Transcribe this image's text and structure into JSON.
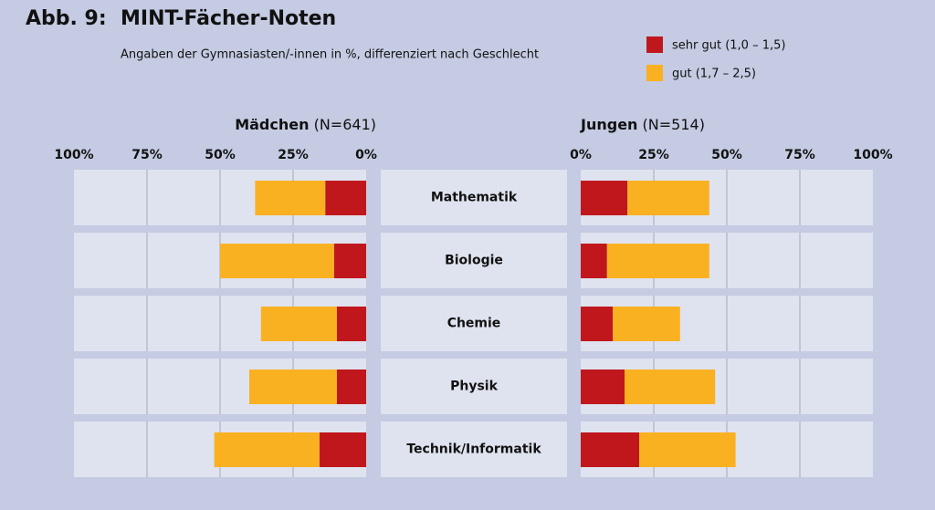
{
  "header": {
    "label": "Abb. 9:",
    "title": "MINT-Fächer-Noten",
    "subtitle": "Angaben der Gymnasiasten/-innen in %, differenziert nach Geschlecht"
  },
  "chart_data": {
    "type": "bar",
    "stacked": true,
    "orientation": "horizontal",
    "grid": true,
    "categories": [
      "Mathematik",
      "Biologie",
      "Chemie",
      "Physik",
      "Technik/Informatik"
    ],
    "legend": [
      {
        "name": "sehr gut (1,0 – 1,5)",
        "color": "#c0171d"
      },
      {
        "name": "gut (1,7 – 2,5)",
        "color": "#f9b122"
      }
    ],
    "panels": [
      {
        "title": "Mädchen",
        "note": "(N=641)",
        "direction": "left",
        "xlim": [
          0,
          100
        ],
        "xticks": [
          {
            "value": 0,
            "label": "0%"
          },
          {
            "value": 25,
            "label": "25%"
          },
          {
            "value": 50,
            "label": "50%"
          },
          {
            "value": 75,
            "label": "75%"
          },
          {
            "value": 100,
            "label": "100%"
          }
        ],
        "series": [
          {
            "values": [
              14,
              11,
              10,
              10,
              16
            ]
          },
          {
            "values": [
              24,
              39,
              26,
              30,
              36
            ]
          }
        ]
      },
      {
        "title": "Jungen",
        "note": "(N=514)",
        "direction": "right",
        "xlim": [
          0,
          100
        ],
        "xticks": [
          {
            "value": 0,
            "label": "0%"
          },
          {
            "value": 25,
            "label": "25%"
          },
          {
            "value": 50,
            "label": "50%"
          },
          {
            "value": 75,
            "label": "75%"
          },
          {
            "value": 100,
            "label": "100%"
          }
        ],
        "series": [
          {
            "values": [
              16,
              9,
              11,
              15,
              20
            ]
          },
          {
            "values": [
              28,
              35,
              23,
              31,
              33
            ]
          }
        ]
      }
    ]
  }
}
